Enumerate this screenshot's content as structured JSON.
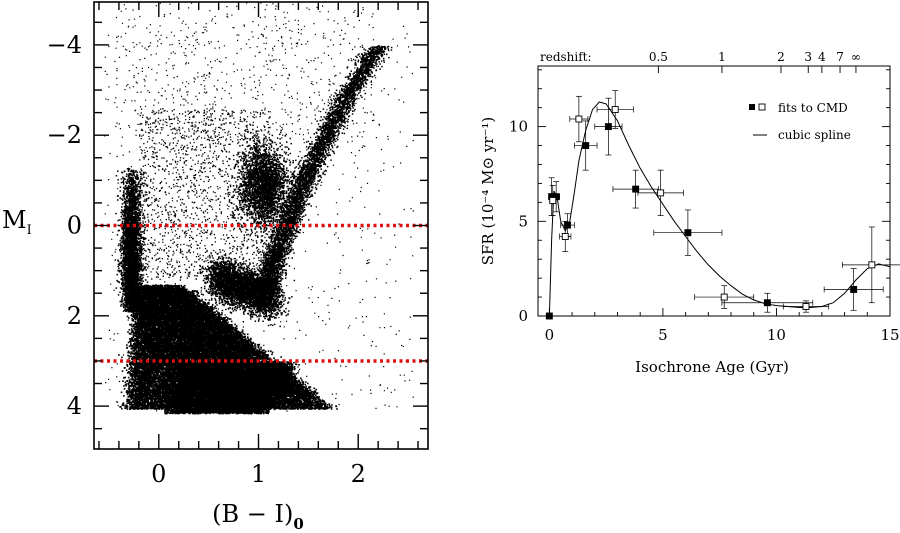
{
  "chart_data": [
    {
      "type": "scatter",
      "title": "",
      "xlabel": "(B − I)",
      "xlabel_subscript": "0",
      "ylabel": "M",
      "ylabel_subscript": "I",
      "xlim": [
        -0.65,
        2.7
      ],
      "ylim": [
        4.95,
        -4.95
      ],
      "y_inverted": true,
      "x_ticks": [
        0,
        1,
        2
      ],
      "x_tick_labels": [
        "0",
        "1",
        "2"
      ],
      "y_ticks": [
        -4,
        -2,
        0,
        2,
        4
      ],
      "y_tick_labels": [
        "−4",
        "−2",
        "0",
        "2",
        "4"
      ],
      "reference_lines": [
        {
          "axis": "y",
          "value": 0,
          "color": "#e01010",
          "style": "dotted"
        },
        {
          "axis": "y",
          "value": 3,
          "color": "#e01010",
          "style": "dotted"
        }
      ],
      "features": [
        {
          "name": "main sequence",
          "x_range": [
            -0.3,
            1.4
          ],
          "y_range": [
            1.5,
            4.1
          ]
        },
        {
          "name": "red giant branch",
          "x_start": 1.0,
          "y_start": 1.2,
          "x_end": 2.15,
          "y_end": -4.0
        },
        {
          "name": "red clump",
          "x": 1.05,
          "y": -0.9
        },
        {
          "name": "blue plume",
          "x_range": [
            -0.4,
            -0.1
          ],
          "y_range": [
            -1.3,
            2.5
          ]
        },
        {
          "name": "foreground scatter",
          "x_range": [
            -0.5,
            2.5
          ],
          "y_range": [
            -4.9,
            4.0
          ]
        }
      ]
    },
    {
      "type": "line",
      "title": "",
      "xlabel": "Isochrone Age (Gyr)",
      "ylabel": "SFR  (10⁻⁴ M⊙ yr⁻¹)",
      "xlim": [
        -0.5,
        15
      ],
      "ylim": [
        0,
        13.2
      ],
      "x_ticks": [
        0,
        5,
        10,
        15
      ],
      "x_tick_labels": [
        "0",
        "5",
        "10",
        "15"
      ],
      "y_ticks": [
        0,
        5,
        10
      ],
      "y_tick_labels": [
        "0",
        "5",
        "10"
      ],
      "top_axis": {
        "label": "redshift:",
        "ticks": [
          {
            "age": 4.8,
            "label": "0.5"
          },
          {
            "age": 7.6,
            "label": "1"
          },
          {
            "age": 10.2,
            "label": "2"
          },
          {
            "age": 11.4,
            "label": "3"
          },
          {
            "age": 12.0,
            "label": "4"
          },
          {
            "age": 12.8,
            "label": "7"
          },
          {
            "age": 13.5,
            "label": "∞"
          }
        ]
      },
      "legend": {
        "position": "top-right",
        "entries": [
          {
            "label": "fits to CMD",
            "marker": "filled-and-open-square"
          },
          {
            "label": "cubic spline",
            "marker": "line"
          }
        ]
      },
      "series": [
        {
          "name": "fits to CMD (filled)",
          "marker": "filled-square",
          "points": [
            {
              "x": 0.0,
              "y": 0.0,
              "xerr": 0.0,
              "yerr": 0.0
            },
            {
              "x": 0.1,
              "y": 6.3,
              "xerr": 0.1,
              "yerr": 1.0
            },
            {
              "x": 0.3,
              "y": 6.3,
              "xerr": 0.15,
              "yerr": 0.8
            },
            {
              "x": 0.8,
              "y": 4.8,
              "xerr": 0.3,
              "yerr": 0.6
            },
            {
              "x": 1.6,
              "y": 9.0,
              "xerr": 0.5,
              "yerr": 1.3
            },
            {
              "x": 2.6,
              "y": 10.0,
              "xerr": 0.6,
              "yerr": 1.5
            },
            {
              "x": 3.8,
              "y": 6.7,
              "xerr": 1.0,
              "yerr": 1.0
            },
            {
              "x": 6.1,
              "y": 4.4,
              "xerr": 1.5,
              "yerr": 1.2
            },
            {
              "x": 9.6,
              "y": 0.7,
              "xerr": 2.0,
              "yerr": 0.5
            },
            {
              "x": 13.4,
              "y": 1.4,
              "xerr": 1.3,
              "yerr": 1.1
            }
          ]
        },
        {
          "name": "fits to CMD (open)",
          "marker": "open-square",
          "points": [
            {
              "x": 0.15,
              "y": 6.1,
              "xerr": 0.1,
              "yerr": 0.8
            },
            {
              "x": 0.7,
              "y": 4.2,
              "xerr": 0.25,
              "yerr": 0.8
            },
            {
              "x": 1.3,
              "y": 10.4,
              "xerr": 0.4,
              "yerr": 1.2
            },
            {
              "x": 2.9,
              "y": 10.9,
              "xerr": 0.8,
              "yerr": 1.0
            },
            {
              "x": 4.9,
              "y": 6.5,
              "xerr": 1.0,
              "yerr": 1.2
            },
            {
              "x": 7.7,
              "y": 1.0,
              "xerr": 1.3,
              "yerr": 0.6
            },
            {
              "x": 11.3,
              "y": 0.5,
              "xerr": 1.0,
              "yerr": 0.3
            },
            {
              "x": 14.2,
              "y": 2.7,
              "xerr": 1.3,
              "yerr": 2.0
            }
          ]
        },
        {
          "name": "cubic spline",
          "marker": "line",
          "points": [
            {
              "x": 0.0,
              "y": 0.0
            },
            {
              "x": 0.1,
              "y": 4.0
            },
            {
              "x": 0.2,
              "y": 6.6
            },
            {
              "x": 0.35,
              "y": 6.2
            },
            {
              "x": 0.5,
              "y": 5.0
            },
            {
              "x": 0.7,
              "y": 4.5
            },
            {
              "x": 0.9,
              "y": 5.0
            },
            {
              "x": 1.1,
              "y": 6.5
            },
            {
              "x": 1.3,
              "y": 8.2
            },
            {
              "x": 1.6,
              "y": 9.8
            },
            {
              "x": 1.9,
              "y": 10.9
            },
            {
              "x": 2.2,
              "y": 11.3
            },
            {
              "x": 2.5,
              "y": 11.2
            },
            {
              "x": 3.0,
              "y": 10.3
            },
            {
              "x": 3.5,
              "y": 9.0
            },
            {
              "x": 4.0,
              "y": 7.8
            },
            {
              "x": 4.5,
              "y": 6.8
            },
            {
              "x": 5.0,
              "y": 5.9
            },
            {
              "x": 5.5,
              "y": 5.0
            },
            {
              "x": 6.0,
              "y": 4.2
            },
            {
              "x": 6.5,
              "y": 3.4
            },
            {
              "x": 7.0,
              "y": 2.7
            },
            {
              "x": 7.5,
              "y": 2.1
            },
            {
              "x": 8.0,
              "y": 1.6
            },
            {
              "x": 8.5,
              "y": 1.15
            },
            {
              "x": 9.0,
              "y": 0.85
            },
            {
              "x": 9.5,
              "y": 0.65
            },
            {
              "x": 10.0,
              "y": 0.55
            },
            {
              "x": 10.5,
              "y": 0.5
            },
            {
              "x": 11.0,
              "y": 0.45
            },
            {
              "x": 11.5,
              "y": 0.45
            },
            {
              "x": 12.0,
              "y": 0.5
            },
            {
              "x": 12.5,
              "y": 0.7
            },
            {
              "x": 13.0,
              "y": 1.2
            },
            {
              "x": 13.5,
              "y": 1.9
            },
            {
              "x": 14.0,
              "y": 2.5
            },
            {
              "x": 14.5,
              "y": 2.75
            },
            {
              "x": 15.0,
              "y": 2.6
            }
          ]
        }
      ]
    }
  ]
}
